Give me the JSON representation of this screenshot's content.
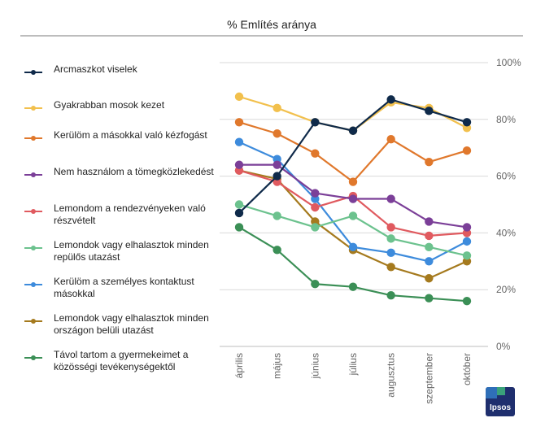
{
  "colors": {
    "navy": "#0f2a4a",
    "yellow": "#f2c04d",
    "orange": "#e0782c",
    "purple": "#7b3f98",
    "red": "#e05a5f",
    "lightgreen": "#6cc28e",
    "blue": "#3d8bdc",
    "gold": "#a57a1e",
    "green": "#3b8f56",
    "grid": "#d9d9d9",
    "axis_text": "#666666"
  },
  "logo": {
    "text": "Ipsos"
  },
  "chart_data": {
    "type": "line",
    "title": "% Említés aránya",
    "categories": [
      "április",
      "május",
      "június",
      "július",
      "augusztus",
      "szeptember",
      "október"
    ],
    "ylim": [
      0,
      100
    ],
    "yticks": [
      0,
      20,
      40,
      60,
      80,
      100
    ],
    "ytick_labels": [
      "0%",
      "20%",
      "40%",
      "60%",
      "80%",
      "100%"
    ],
    "grid": true,
    "legend_position": "left",
    "series": [
      {
        "name": "Arcmaszkot viselek",
        "color": "#0f2a4a",
        "values": [
          47,
          60,
          79,
          76,
          87,
          83,
          79
        ]
      },
      {
        "name": "Gyakrabban mosok kezet",
        "color": "#f2c04d",
        "values": [
          88,
          84,
          79,
          76,
          86,
          84,
          77
        ]
      },
      {
        "name": "Kerülöm a másokkal való kézfogást",
        "color": "#e0782c",
        "values": [
          79,
          75,
          68,
          58,
          73,
          65,
          69
        ]
      },
      {
        "name": "Nem használom a tömegközlekedést",
        "color": "#7b3f98",
        "values": [
          64,
          64,
          54,
          52,
          52,
          44,
          42
        ]
      },
      {
        "name": "Lemondom a rendezvényeken való részvételt",
        "color": "#e05a5f",
        "values": [
          62,
          58,
          49,
          53,
          42,
          39,
          40
        ]
      },
      {
        "name": "Lemondok vagy elhalasztok minden repülős utazást",
        "color": "#6cc28e",
        "values": [
          50,
          46,
          42,
          46,
          38,
          35,
          32
        ]
      },
      {
        "name": "Kerülöm a személyes kontaktust másokkal",
        "color": "#3d8bdc",
        "values": [
          72,
          66,
          52,
          35,
          33,
          30,
          37
        ]
      },
      {
        "name": "Lemondok vagy elhalasztok minden országon belüli utazást",
        "color": "#a57a1e",
        "values": [
          62,
          59,
          44,
          34,
          28,
          24,
          30
        ]
      },
      {
        "name": "Távol tartom a gyermekeimet a közösségi tevékenységektől",
        "color": "#3b8f56",
        "values": [
          42,
          34,
          22,
          21,
          18,
          17,
          16
        ]
      }
    ]
  }
}
